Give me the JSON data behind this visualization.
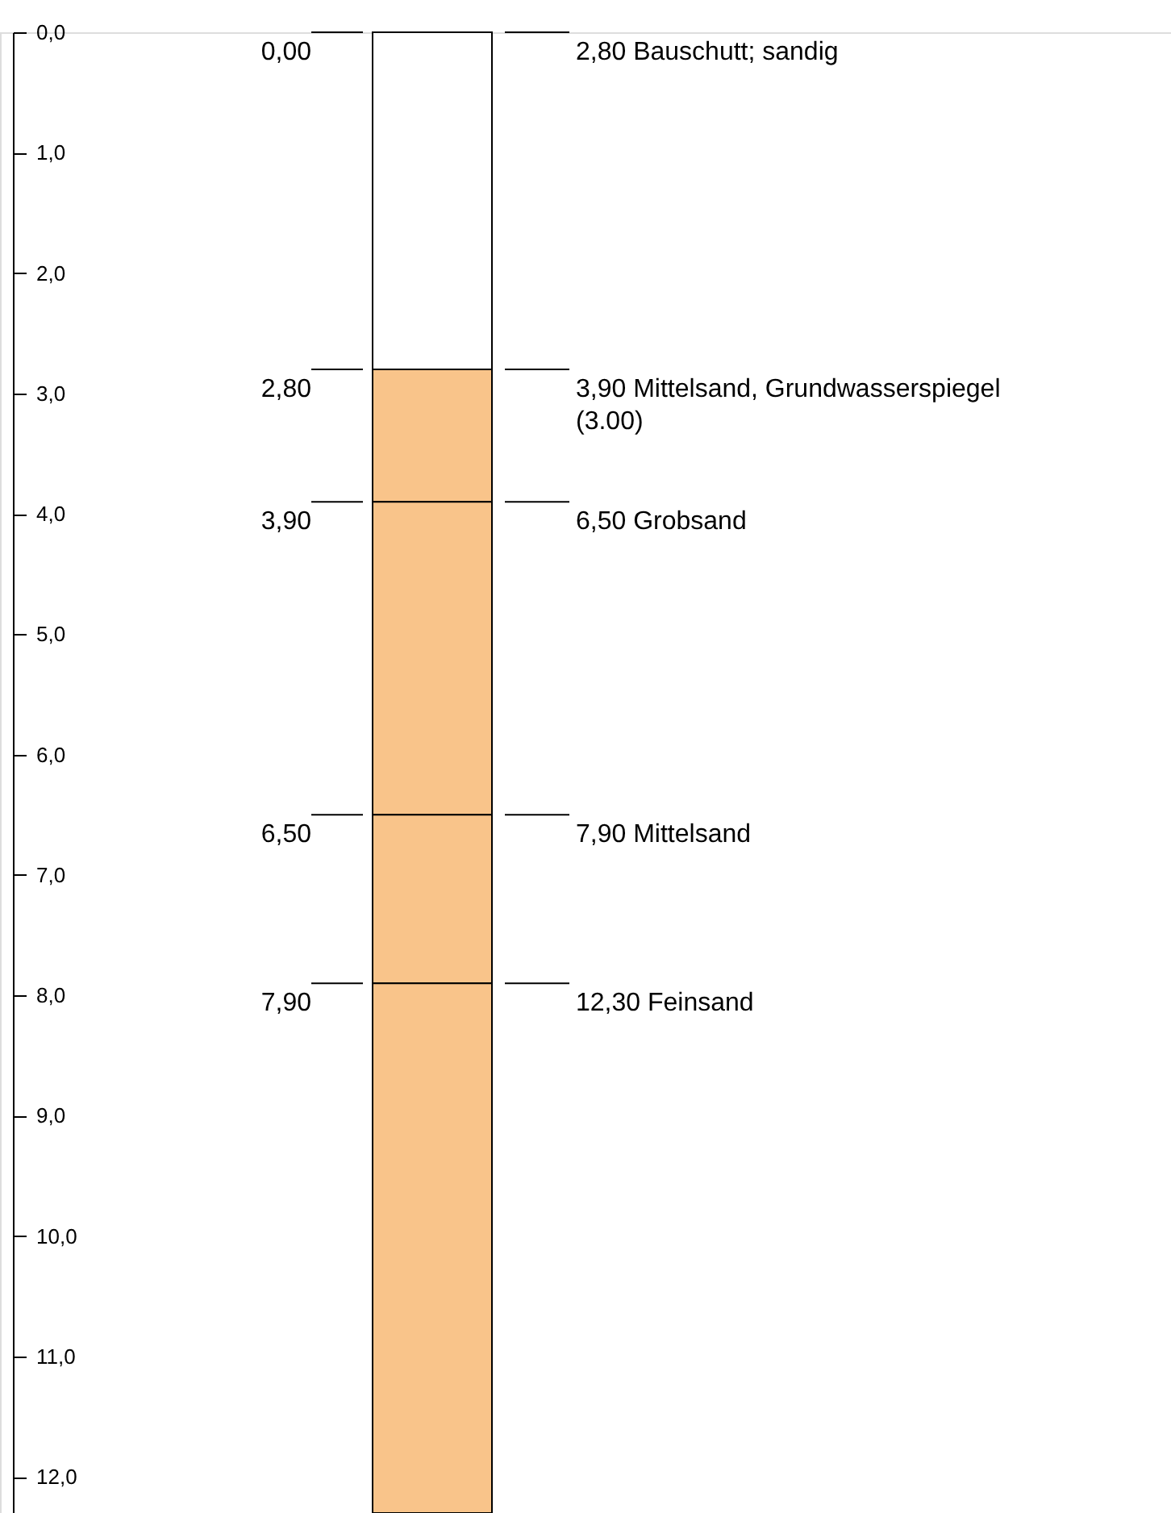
{
  "chart_data": {
    "type": "bar",
    "stacked": true,
    "categories": [
      null
    ],
    "series": [
      {
        "color": "#ffffff",
        "values": [
          2.8
        ]
      },
      {
        "color": "#f9c48a",
        "values": [
          1.1
        ]
      },
      {
        "color": "#f9c48a",
        "values": [
          2.6
        ]
      },
      {
        "color": "#f9c48a",
        "values": [
          1.4
        ]
      },
      {
        "color": "#f9c48a",
        "values": [
          4.4
        ]
      }
    ],
    "ylim": [
      12.3,
      0
    ],
    "yticks": [
      {
        "value": 0,
        "label": "0,0"
      },
      {
        "value": 1,
        "label": "1,0"
      },
      {
        "value": 2,
        "label": "2,0"
      },
      {
        "value": 3,
        "label": "3,0"
      },
      {
        "value": 4,
        "label": "4,0"
      },
      {
        "value": 5,
        "label": "5,0"
      },
      {
        "value": 6,
        "label": "6,0"
      },
      {
        "value": 7,
        "label": "7,0"
      },
      {
        "value": 8,
        "label": "8,0"
      },
      {
        "value": 9,
        "label": "9,0"
      },
      {
        "value": 10,
        "label": "10,0"
      },
      {
        "value": 11,
        "label": "11,0"
      },
      {
        "value": 12,
        "label": "12,0"
      }
    ],
    "annotations": [
      "0,00",
      "2,80  Bauschutt; sandig",
      "2,80",
      "3,90  Mittelsand, Grundwasserspiegel\n(3.00)",
      "3,90",
      "6,50  Grobsand",
      "6,50",
      "7,90  Mittelsand",
      "7,90",
      "12,30  Feinsand"
    ],
    "grid": false
  }
}
